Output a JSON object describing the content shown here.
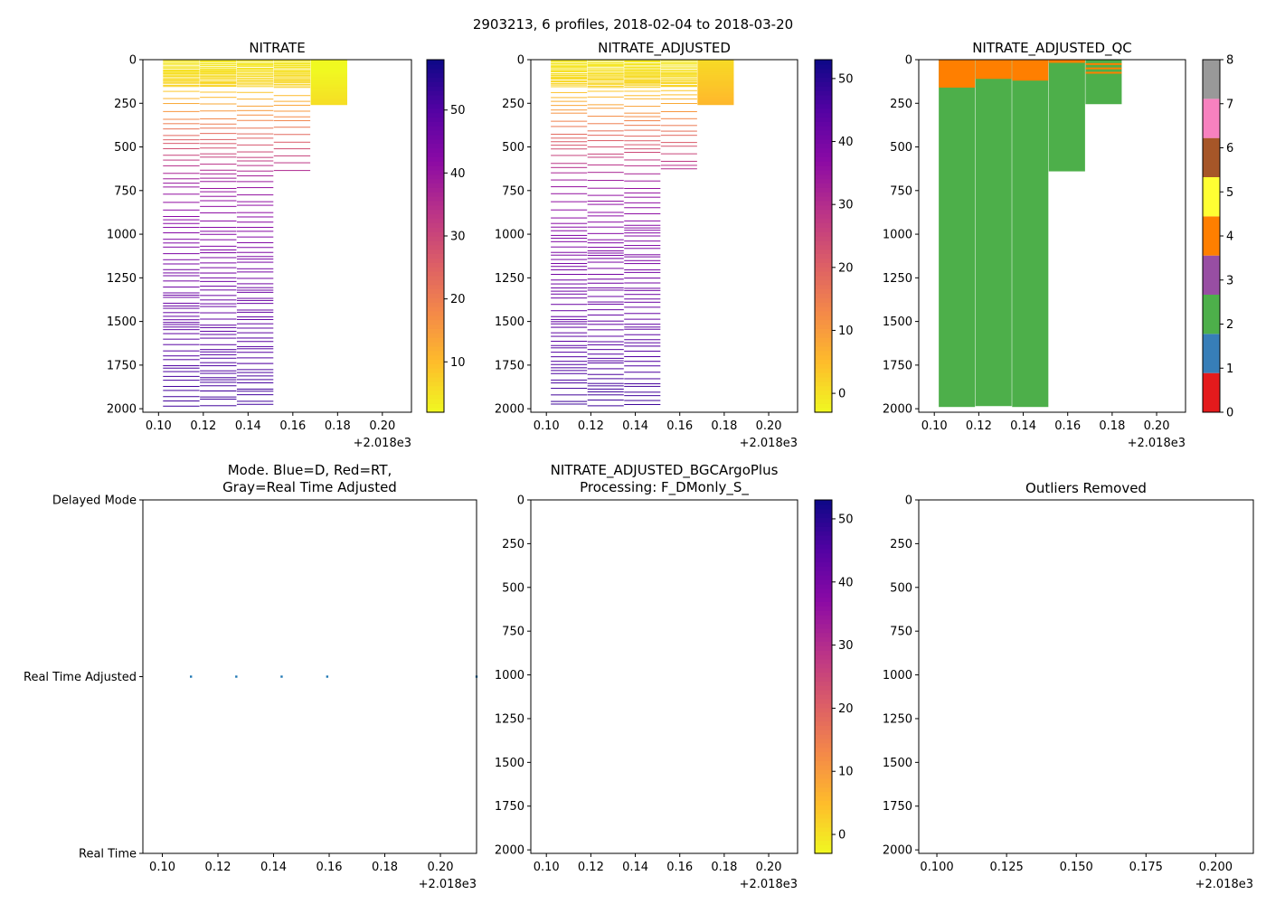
{
  "figure": {
    "suptitle": "2903213, 6 profiles, 2018-02-04 to 2018-03-20"
  },
  "chart_data": [
    {
      "id": "nitrate",
      "type": "heatmap",
      "title": "NITRATE",
      "xlim": [
        0.093,
        0.213
      ],
      "ylim": [
        2020,
        0
      ],
      "x_ticks": [
        "0.10",
        "0.12",
        "0.14",
        "0.16",
        "0.18",
        "0.20"
      ],
      "x_tick_values": [
        0.1,
        0.12,
        0.14,
        0.16,
        0.18,
        0.2
      ],
      "x_offset_label": "+2.018e3",
      "y_ticks": [
        "0",
        "250",
        "500",
        "750",
        "1000",
        "1250",
        "1500",
        "1750",
        "2000"
      ],
      "y_tick_values": [
        0,
        250,
        500,
        750,
        1000,
        1250,
        1500,
        1750,
        2000
      ],
      "colorbar": {
        "cmap": "plasma_r",
        "range": [
          2,
          58
        ],
        "ticks": [
          "10",
          "20",
          "30",
          "40",
          "50"
        ],
        "tick_values": [
          10,
          20,
          30,
          40,
          50
        ]
      },
      "profiles": [
        {
          "x": 0.102,
          "width": 0.0163,
          "max_depth": 2000
        },
        {
          "x": 0.1185,
          "width": 0.0163,
          "max_depth": 2000
        },
        {
          "x": 0.135,
          "width": 0.0163,
          "max_depth": 2000
        },
        {
          "x": 0.1515,
          "width": 0.0163,
          "max_depth": 640
        },
        {
          "x": 0.168,
          "width": 0.0163,
          "max_depth": 255
        }
      ]
    },
    {
      "id": "nitrate_adjusted",
      "type": "heatmap",
      "title": "NITRATE_ADJUSTED",
      "xlim": [
        0.093,
        0.213
      ],
      "ylim": [
        2020,
        0
      ],
      "x_ticks": [
        "0.10",
        "0.12",
        "0.14",
        "0.16",
        "0.18",
        "0.20"
      ],
      "x_tick_values": [
        0.1,
        0.12,
        0.14,
        0.16,
        0.18,
        0.2
      ],
      "x_offset_label": "+2.018e3",
      "y_ticks": [
        "0",
        "250",
        "500",
        "750",
        "1000",
        "1250",
        "1500",
        "1750",
        "2000"
      ],
      "y_tick_values": [
        0,
        250,
        500,
        750,
        1000,
        1250,
        1500,
        1750,
        2000
      ],
      "colorbar": {
        "cmap": "plasma_r",
        "range": [
          -3,
          53
        ],
        "ticks": [
          "0",
          "10",
          "20",
          "30",
          "40",
          "50"
        ],
        "tick_values": [
          0,
          10,
          20,
          30,
          40,
          50
        ]
      },
      "profiles": [
        {
          "x": 0.102,
          "width": 0.0163,
          "max_depth": 2000
        },
        {
          "x": 0.1185,
          "width": 0.0163,
          "max_depth": 2000
        },
        {
          "x": 0.135,
          "width": 0.0163,
          "max_depth": 2000
        },
        {
          "x": 0.1515,
          "width": 0.0163,
          "max_depth": 640
        },
        {
          "x": 0.168,
          "width": 0.0163,
          "max_depth": 255
        }
      ]
    },
    {
      "id": "nitrate_adjusted_qc",
      "type": "heatmap",
      "title": "NITRATE_ADJUSTED_QC",
      "xlim": [
        0.093,
        0.213
      ],
      "ylim": [
        2020,
        0
      ],
      "x_ticks": [
        "0.10",
        "0.12",
        "0.14",
        "0.16",
        "0.18",
        "0.20"
      ],
      "x_tick_values": [
        0.1,
        0.12,
        0.14,
        0.16,
        0.18,
        0.2
      ],
      "x_offset_label": "+2.018e3",
      "y_ticks": [
        "0",
        "250",
        "500",
        "750",
        "1000",
        "1250",
        "1500",
        "1750",
        "2000"
      ],
      "y_tick_values": [
        0,
        250,
        500,
        750,
        1000,
        1250,
        1500,
        1750,
        2000
      ],
      "colorbar": {
        "categorical": true,
        "range": [
          0,
          8
        ],
        "colors": [
          "#e41a1c",
          "#377eb8",
          "#4daf4a",
          "#984ea3",
          "#ff7f00",
          "#ffff33",
          "#a65628",
          "#f781bf",
          "#999999"
        ],
        "ticks": [
          "0",
          "1",
          "2",
          "3",
          "4",
          "5",
          "6",
          "7",
          "8"
        ],
        "tick_values": [
          0,
          1,
          2,
          3,
          4,
          5,
          6,
          7,
          8
        ]
      },
      "profiles": [
        {
          "x": 0.102,
          "width": 0.0163,
          "max_depth": 1990,
          "flag4_to": 160
        },
        {
          "x": 0.1185,
          "width": 0.0163,
          "max_depth": 1985,
          "flag4_to": 110
        },
        {
          "x": 0.135,
          "width": 0.0163,
          "max_depth": 1990,
          "flag4_to": 120
        },
        {
          "x": 0.1515,
          "width": 0.0163,
          "max_depth": 640,
          "flag4_to": 18
        },
        {
          "x": 0.168,
          "width": 0.0163,
          "max_depth": 255,
          "flag4_lines": [
            25,
            50,
            75
          ]
        }
      ]
    },
    {
      "id": "mode",
      "type": "scatter",
      "title_lines": [
        "Mode. Blue=D, Red=RT,",
        "Gray=Real Time Adjusted"
      ],
      "xlim": [
        0.093,
        0.213
      ],
      "x_ticks": [
        "0.10",
        "0.12",
        "0.14",
        "0.16",
        "0.18",
        "0.20"
      ],
      "x_tick_values": [
        0.1,
        0.12,
        0.14,
        0.16,
        0.18,
        0.2
      ],
      "x_offset_label": "+2.018e3",
      "y_categories": [
        "Real Time",
        "Real Time Adjusted",
        "Delayed Mode"
      ],
      "points": [
        {
          "x": 0.1103,
          "y": 1
        },
        {
          "x": 0.1266,
          "y": 1
        },
        {
          "x": 0.1429,
          "y": 1
        },
        {
          "x": 0.1593,
          "y": 1
        },
        {
          "x": 0.213,
          "y": 1
        }
      ],
      "point_color": "#1f77b4"
    },
    {
      "id": "bgcargoplus",
      "type": "heatmap",
      "title_lines": [
        "NITRATE_ADJUSTED_BGCArgoPlus",
        "Processing: F_DMonly_S_"
      ],
      "xlim": [
        0.093,
        0.213
      ],
      "ylim": [
        2020,
        0
      ],
      "x_ticks": [
        "0.10",
        "0.12",
        "0.14",
        "0.16",
        "0.18",
        "0.20"
      ],
      "x_tick_values": [
        0.1,
        0.12,
        0.14,
        0.16,
        0.18,
        0.2
      ],
      "x_offset_label": "+2.018e3",
      "y_ticks": [
        "0",
        "250",
        "500",
        "750",
        "1000",
        "1250",
        "1500",
        "1750",
        "2000"
      ],
      "y_tick_values": [
        0,
        250,
        500,
        750,
        1000,
        1250,
        1500,
        1750,
        2000
      ],
      "colorbar": {
        "cmap": "plasma_r",
        "range": [
          -3,
          53
        ],
        "ticks": [
          "0",
          "10",
          "20",
          "30",
          "40",
          "50"
        ],
        "tick_values": [
          0,
          10,
          20,
          30,
          40,
          50
        ]
      },
      "profiles": []
    },
    {
      "id": "outliers",
      "type": "scatter",
      "title": "Outliers Removed",
      "xlim": [
        0.0935,
        0.2135
      ],
      "ylim": [
        2020,
        0
      ],
      "x_ticks": [
        "0.100",
        "0.125",
        "0.150",
        "0.175",
        "0.200"
      ],
      "x_tick_values": [
        0.1,
        0.125,
        0.15,
        0.175,
        0.2
      ],
      "x_offset_label": "+2.018e3",
      "y_ticks": [
        "0",
        "250",
        "500",
        "750",
        "1000",
        "1250",
        "1500",
        "1750",
        "2000"
      ],
      "y_tick_values": [
        0,
        250,
        500,
        750,
        1000,
        1250,
        1500,
        1750,
        2000
      ],
      "points": []
    }
  ]
}
